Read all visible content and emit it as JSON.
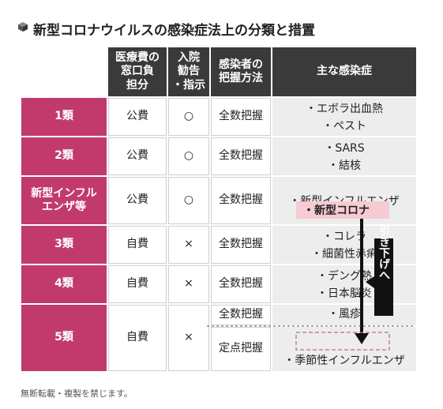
{
  "title": "新型コロナウイルスの感染症法上の分類と措置",
  "title_icon": "cube-icon",
  "headers": {
    "cost": "医療費の\n窓口負\n担分",
    "admission": "入院\n勧告\n・指示",
    "grasp": "感染者の\n把握方法",
    "diseases": "主な感染症"
  },
  "rows": [
    {
      "category": "1類",
      "cost": "公費",
      "admission": "○",
      "grasp": "全数把握",
      "diseases": [
        "・エボラ出血熱",
        "・ペスト"
      ]
    },
    {
      "category": "2類",
      "cost": "公費",
      "admission": "○",
      "grasp": "全数把握",
      "diseases": [
        "・SARS",
        "・結核"
      ]
    },
    {
      "category": "新型インフル\nエンザ等",
      "cost": "公費",
      "admission": "○",
      "grasp": "全数把握",
      "diseases": [
        "・新型インフルエンザ"
      ]
    },
    {
      "category": "3類",
      "cost": "自費",
      "admission": "×",
      "grasp": "全数把握",
      "diseases": [
        "・コレラ",
        "・細菌性赤痢"
      ]
    },
    {
      "category": "4類",
      "cost": "自費",
      "admission": "×",
      "grasp": "全数把握",
      "diseases": [
        "・デング熱",
        "・日本脳炎"
      ]
    }
  ],
  "row5": {
    "category": "5類",
    "cost": "自費",
    "admission": "×",
    "grasp_all": "全数把握",
    "grasp_fixed": "定点把握",
    "disease_all": "・風疹",
    "disease_fixed": "・季節性インフルエンザ"
  },
  "covid_label": "・新型コロナ",
  "arrow_label": "引き下げへ",
  "colors": {
    "category": "#c23a6b",
    "header": "#3a3a3a",
    "highlight": "#f7cbd3",
    "disease_bg": "#ededed"
  },
  "footer_note": "無断転載・複製を禁じます。"
}
